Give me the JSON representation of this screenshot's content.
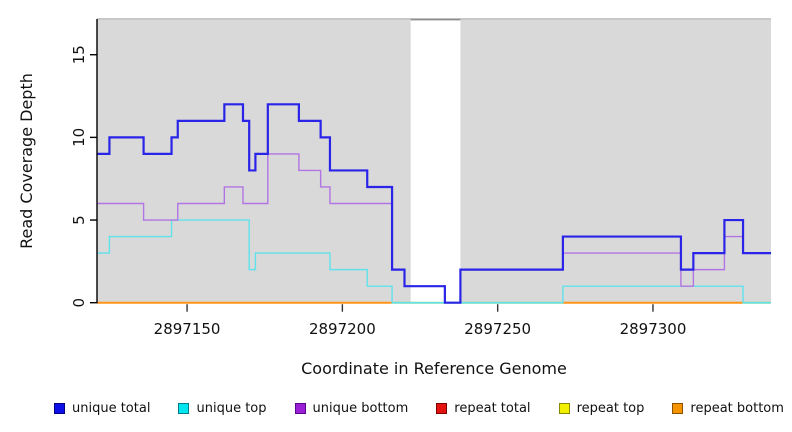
{
  "page": {
    "background": "#ffffff"
  },
  "chart_data": {
    "type": "line",
    "subtype": "step-coverage-plot",
    "title": "",
    "xlabel": "Coordinate in Reference Genome",
    "ylabel": "Read Coverage Depth",
    "xlim": [
      2897121,
      2897338
    ],
    "ylim": [
      0,
      17.1
    ],
    "x_ticks": [
      2897150,
      2897200,
      2897250,
      2897300
    ],
    "y_ticks": [
      0,
      5,
      10,
      15
    ],
    "grid": false,
    "legend_position": "bottom",
    "plot_background": "#d9d9d9",
    "gap_band": {
      "x0": 2897222,
      "x1": 2897238,
      "color": "#ffffff"
    },
    "series": [
      {
        "name": "unique total",
        "color": "#2a24e8",
        "width": 2.2,
        "steps": [
          [
            2897121,
            9
          ],
          [
            2897125,
            10
          ],
          [
            2897136,
            9
          ],
          [
            2897145,
            10
          ],
          [
            2897147,
            11
          ],
          [
            2897162,
            12
          ],
          [
            2897168,
            11
          ],
          [
            2897170,
            8
          ],
          [
            2897172,
            9
          ],
          [
            2897176,
            12
          ],
          [
            2897186,
            11
          ],
          [
            2897193,
            10
          ],
          [
            2897196,
            8
          ],
          [
            2897208,
            7
          ],
          [
            2897216,
            2
          ],
          [
            2897220,
            1
          ],
          [
            2897233,
            0
          ],
          [
            2897238,
            2
          ],
          [
            2897271,
            4
          ],
          [
            2897309,
            2
          ],
          [
            2897313,
            3
          ],
          [
            2897323,
            5
          ],
          [
            2897329,
            3
          ]
        ]
      },
      {
        "name": "unique top",
        "color": "#5fe2ec",
        "width": 1.4,
        "steps": [
          [
            2897121,
            3
          ],
          [
            2897125,
            4
          ],
          [
            2897145,
            5
          ],
          [
            2897170,
            2
          ],
          [
            2897172,
            3
          ],
          [
            2897196,
            2
          ],
          [
            2897208,
            1
          ],
          [
            2897216,
            0
          ],
          [
            2897271,
            1
          ],
          [
            2897329,
            0
          ]
        ]
      },
      {
        "name": "unique bottom",
        "color": "#b274e2",
        "width": 1.4,
        "steps": [
          [
            2897121,
            6
          ],
          [
            2897136,
            5
          ],
          [
            2897147,
            6
          ],
          [
            2897162,
            7
          ],
          [
            2897168,
            6
          ],
          [
            2897176,
            9
          ],
          [
            2897186,
            8
          ],
          [
            2897193,
            7
          ],
          [
            2897196,
            6
          ],
          [
            2897216,
            2
          ],
          [
            2897220,
            1
          ],
          [
            2897233,
            0
          ],
          [
            2897238,
            2
          ],
          [
            2897271,
            3
          ],
          [
            2897309,
            1
          ],
          [
            2897313,
            2
          ],
          [
            2897323,
            4
          ],
          [
            2897329,
            3
          ]
        ]
      },
      {
        "name": "repeat total",
        "color": "#cc2222",
        "width": 1.4,
        "steps": [
          [
            2897121,
            0
          ]
        ]
      },
      {
        "name": "repeat top",
        "color": "#e8e832",
        "width": 1.4,
        "steps": [
          [
            2897121,
            0
          ]
        ]
      },
      {
        "name": "repeat bottom",
        "color": "#ff9418",
        "width": 2,
        "steps": [
          [
            2897121,
            0
          ]
        ]
      }
    ],
    "zero_line_segments": [
      {
        "x0": 2897121,
        "x1": 2897216,
        "color": "#ff9418"
      },
      {
        "x0": 2897216,
        "x1": 2897271,
        "color": "#8fd68f"
      },
      {
        "x0": 2897271,
        "x1": 2897329,
        "color": "#ff9418"
      },
      {
        "x0": 2897329,
        "x1": 2897338,
        "color": "#8fd68f"
      }
    ],
    "legend": [
      {
        "label": "unique total",
        "color": "#0f0fe8",
        "border": "#000080"
      },
      {
        "label": "unique top",
        "color": "#00e5ee",
        "border": "#007d8a"
      },
      {
        "label": "unique bottom",
        "color": "#9a1fd6",
        "border": "#57068c"
      },
      {
        "label": "repeat total",
        "color": "#e51212",
        "border": "#7a0000"
      },
      {
        "label": "repeat top",
        "color": "#f0f000",
        "border": "#8a8a00"
      },
      {
        "label": "repeat bottom",
        "color": "#f59300",
        "border": "#8a5200"
      }
    ]
  }
}
